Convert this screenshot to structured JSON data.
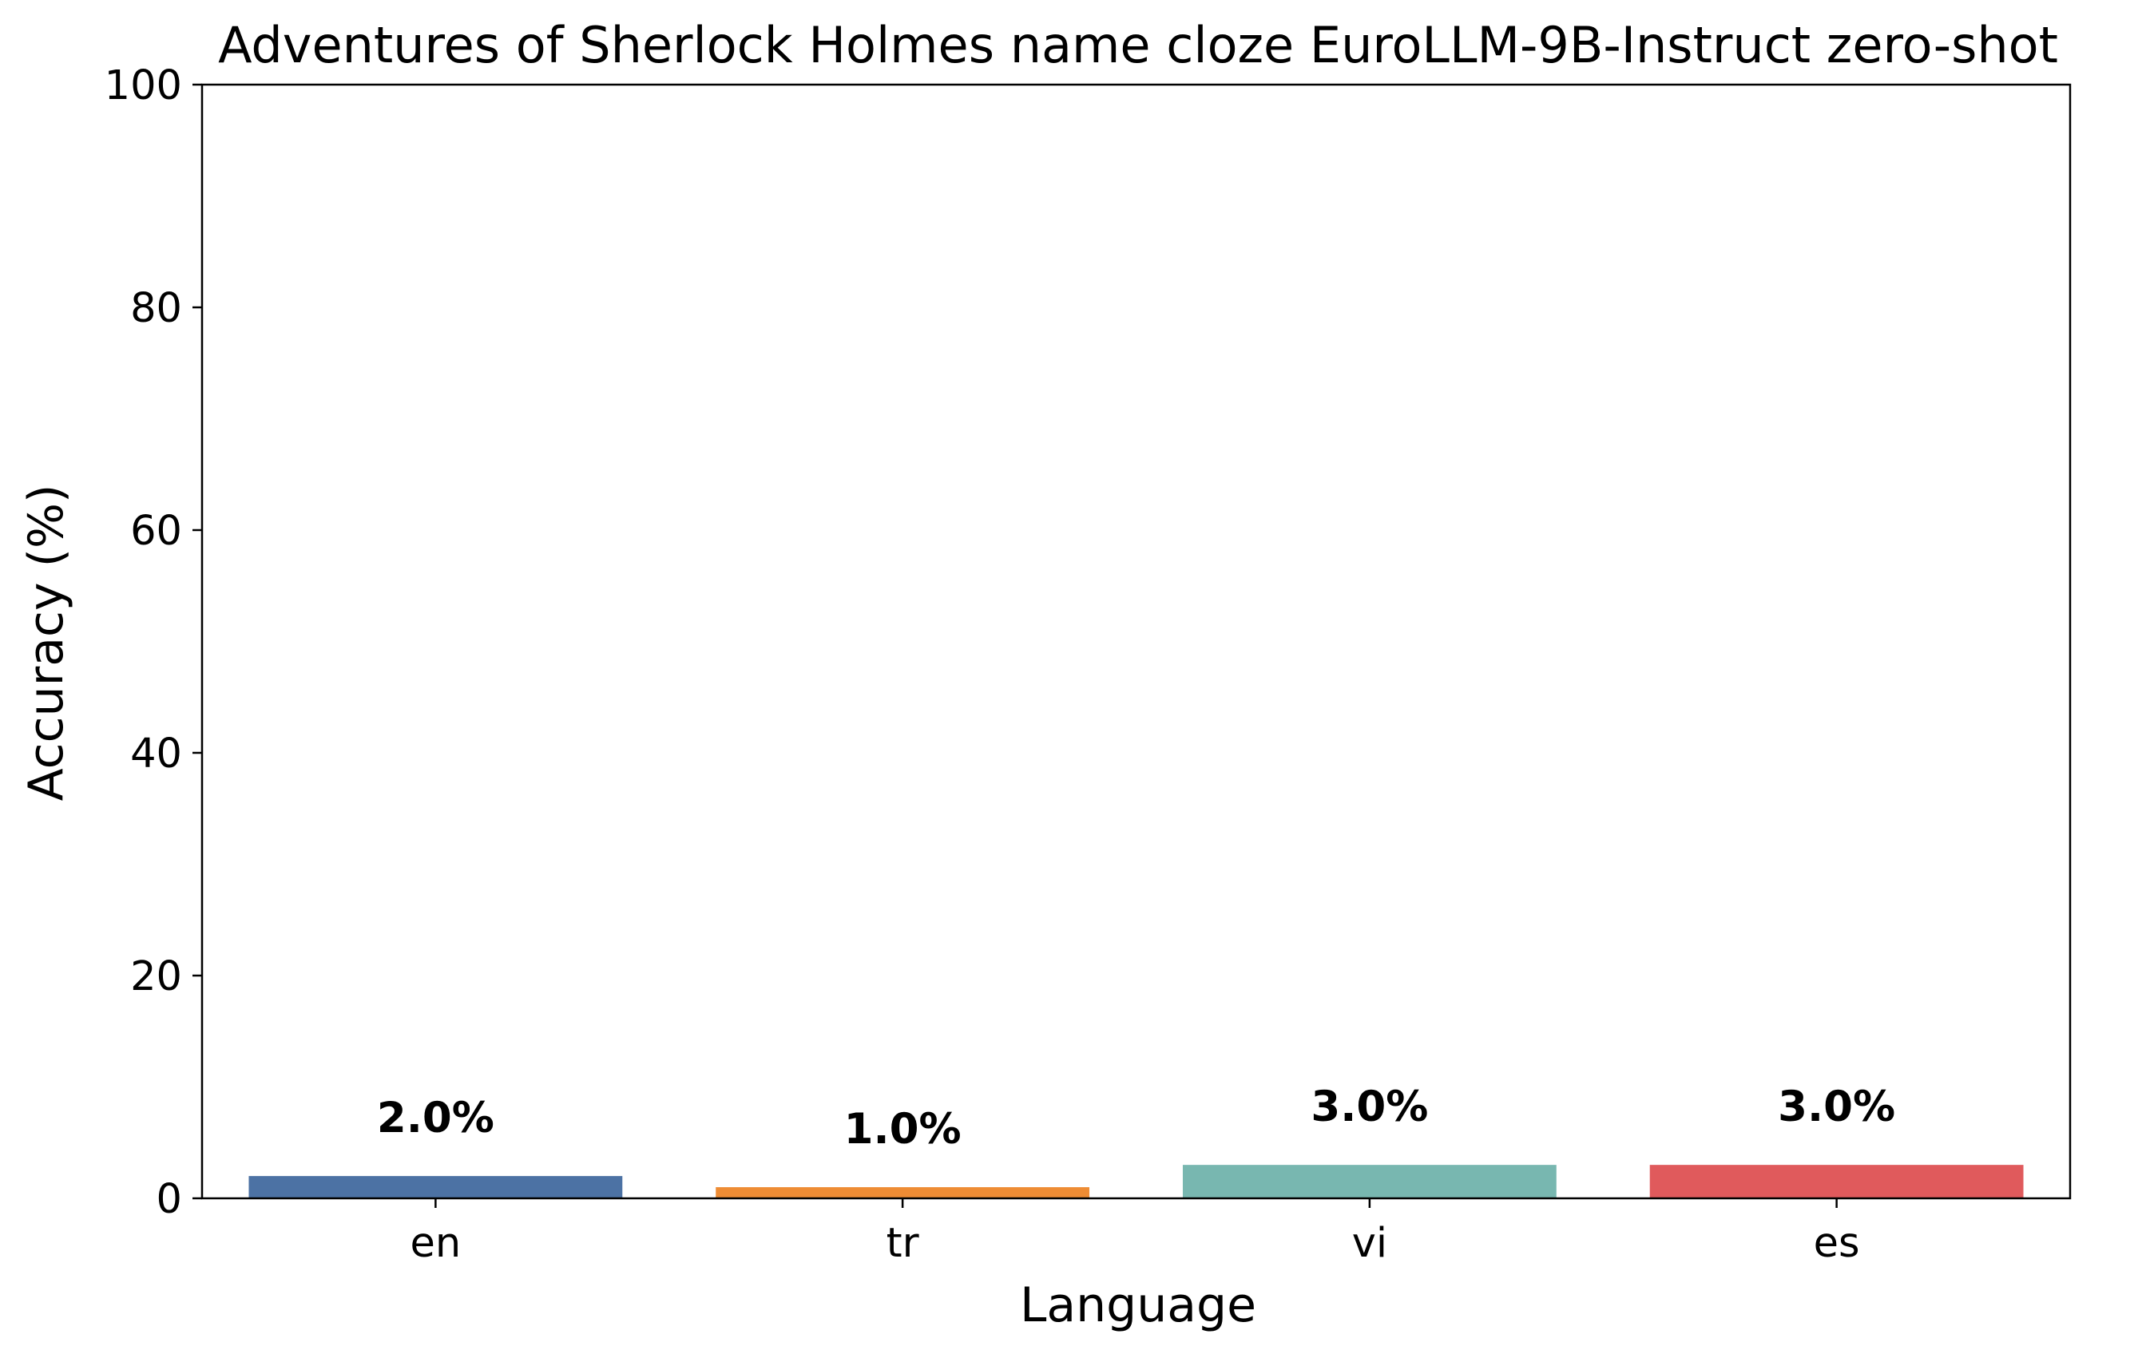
{
  "chart_data": {
    "type": "bar",
    "title": "Adventures of Sherlock Holmes name cloze EuroLLM-9B-Instruct zero-shot",
    "xlabel": "Language",
    "ylabel": "Accuracy (%)",
    "categories": [
      "en",
      "tr",
      "vi",
      "es"
    ],
    "values": [
      2.0,
      1.0,
      3.0,
      3.0
    ],
    "value_labels": [
      "2.0%",
      "1.0%",
      "3.0%",
      "3.0%"
    ],
    "colors": [
      "#4c72a4",
      "#ee8c34",
      "#78b7b0",
      "#e05a5c"
    ],
    "ylim": [
      0,
      100
    ],
    "yticks": [
      0,
      20,
      40,
      60,
      80,
      100
    ],
    "ytick_labels": [
      "0",
      "20",
      "40",
      "60",
      "80",
      "100"
    ],
    "grid": false,
    "legend": false
  }
}
